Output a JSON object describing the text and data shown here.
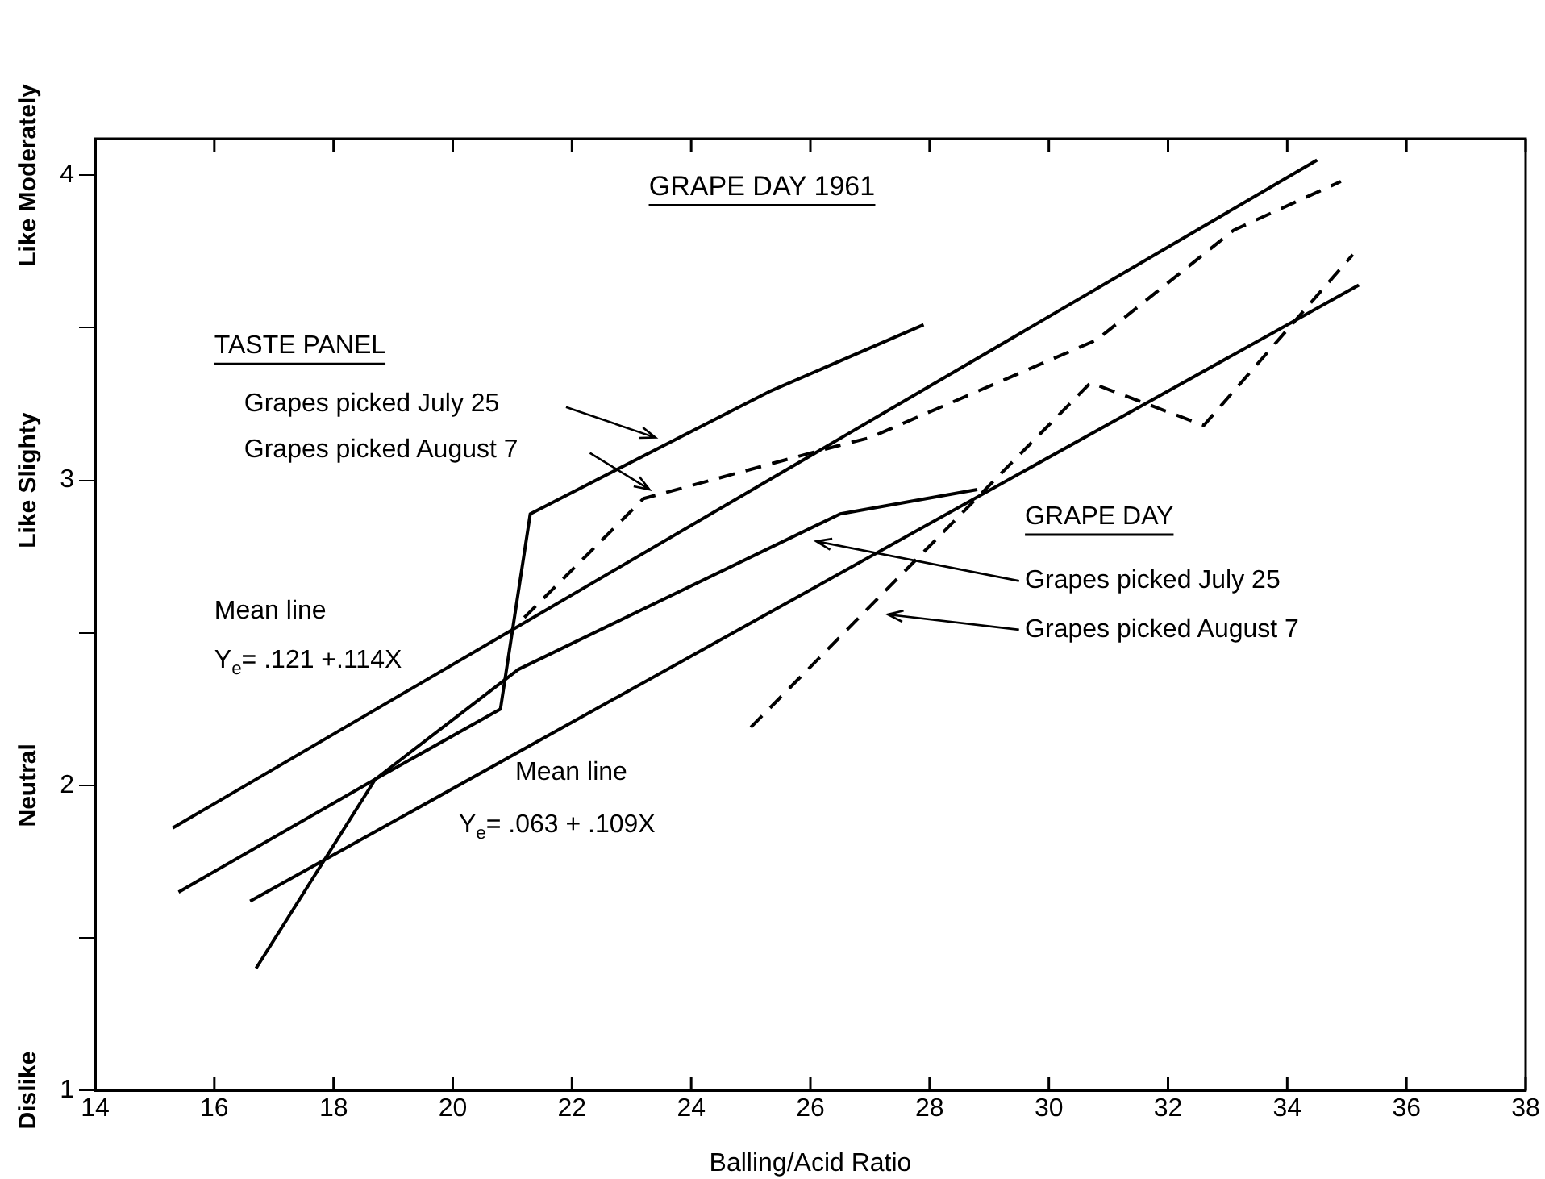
{
  "chart_data": {
    "type": "line",
    "title": "GRAPE DAY 1961",
    "xlabel": "Balling/Acid Ratio",
    "xlim": [
      14,
      38
    ],
    "xticks": [
      14,
      16,
      18,
      20,
      22,
      24,
      26,
      28,
      30,
      32,
      34,
      36,
      38
    ],
    "ylim": [
      1,
      4.12
    ],
    "yticks": [
      1,
      {
        "value": 1.5,
        "label": null
      },
      2,
      {
        "value": 2.5,
        "label": null
      },
      3,
      {
        "value": 3.5,
        "label": null
      },
      4
    ],
    "grid": false,
    "legend": false,
    "marker": "none",
    "series": [
      {
        "color": "#000000",
        "line_style": "solid",
        "x": [
          16.7,
          18.7,
          20.8,
          21.3,
          25.3,
          27.9
        ],
        "values": [
          1.4,
          2.02,
          2.25,
          2.89,
          3.29,
          3.51
        ]
      },
      {
        "color": "#000000",
        "line_style": "dashed",
        "x": [
          21.2,
          23.2,
          26.2,
          27.0,
          30.8,
          33.1,
          34.9
        ],
        "values": [
          2.55,
          2.94,
          3.1,
          3.14,
          3.46,
          3.82,
          3.98
        ]
      },
      {
        "color": "#000000",
        "line_style": "solid",
        "x": [
          15.4,
          18.7,
          21.1,
          26.5,
          28.8
        ],
        "values": [
          1.65,
          2.02,
          2.38,
          2.89,
          2.97
        ]
      },
      {
        "color": "#000000",
        "line_style": "dashed",
        "x": [
          25.0,
          30.7,
          32.6,
          35.1
        ],
        "values": [
          2.19,
          3.32,
          3.18,
          3.74
        ]
      },
      {
        "color": "#000000",
        "line_style": "solid",
        "x": [
          15.3,
          34.5
        ],
        "values": [
          1.86,
          4.05
        ]
      },
      {
        "color": "#000000",
        "line_style": "solid",
        "x": [
          16.6,
          35.2
        ],
        "values": [
          1.62,
          3.64
        ]
      }
    ],
    "annotations": [
      "TASTE PANEL",
      "Grapes picked July 25",
      "Grapes picked August 7",
      "GRAPE DAY",
      "Grapes picked July 25",
      "Grapes picked August 7",
      "Mean line",
      "Y$_{e}$= .121 +.114X",
      "Mean line",
      "Y$_{e}$= .063 + .109X",
      "Like Moderately",
      "Like Slighty",
      "Neutral",
      "Dislike"
    ]
  }
}
